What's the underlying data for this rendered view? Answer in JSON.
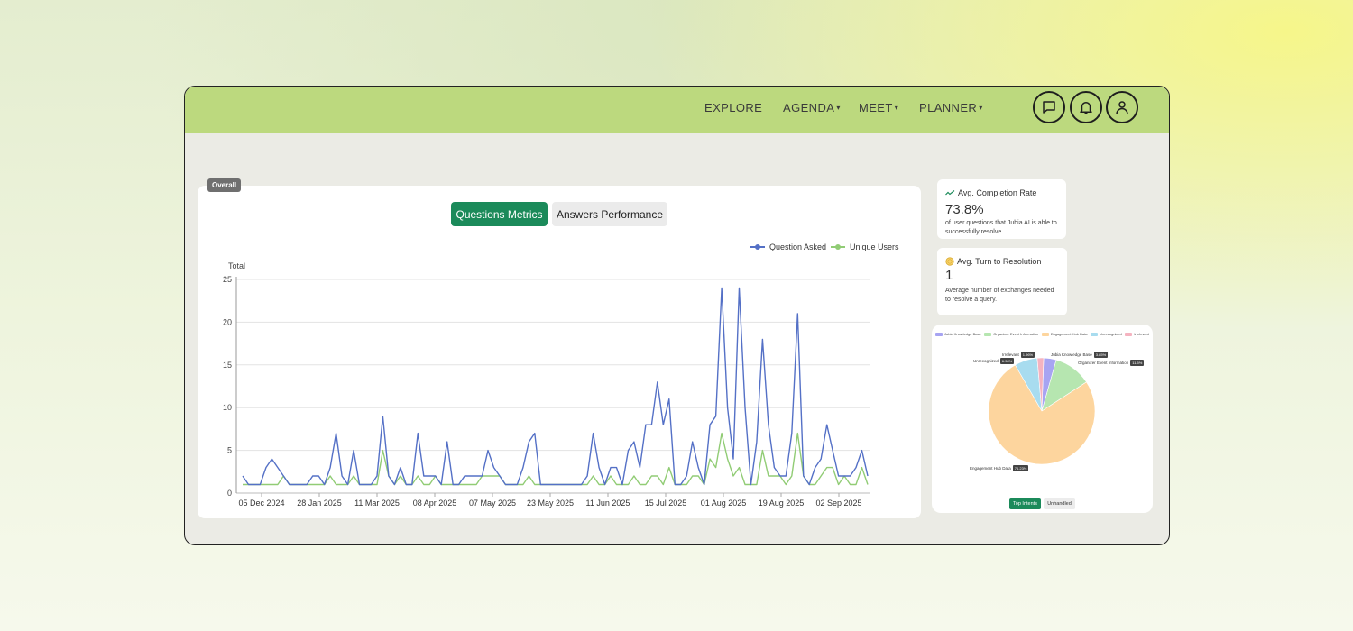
{
  "nav": {
    "explore": "EXPLORE",
    "agenda": "AGENDA",
    "meet": "MEET",
    "planner": "PLANNER",
    "caret": "▾"
  },
  "icons": {
    "chat": "chat-icon",
    "notifications": "bell-icon",
    "profile": "user-icon"
  },
  "colors": {
    "navbar": "#bcd97e",
    "accent_green": "#1b8a5a",
    "question_line": "#5470c6",
    "unique_line": "#91cc75"
  },
  "main": {
    "badge": "Overall",
    "tabs": [
      {
        "label": "Questions Metrics",
        "active": true
      },
      {
        "label": "Answers Performance",
        "active": false
      }
    ]
  },
  "chart_data": {
    "type": "line",
    "ylabel": "Total",
    "ylim": [
      0,
      25
    ],
    "yticks": [
      0,
      5,
      10,
      15,
      20,
      25
    ],
    "x_tick_labels": [
      "05 Dec 2024",
      "28 Jan 2025",
      "11 Mar 2025",
      "08 Apr 2025",
      "07 May 2025",
      "23 May 2025",
      "11 Jun 2025",
      "15 Jul 2025",
      "01 Aug 2025",
      "19 Aug 2025",
      "02 Sep 2025"
    ],
    "legend_position": "top-right",
    "grid": true,
    "series": [
      {
        "name": "Question Asked",
        "color": "#5470c6",
        "values": [
          2,
          1,
          1,
          1,
          3,
          4,
          3,
          2,
          1,
          1,
          1,
          1,
          2,
          2,
          1,
          3,
          7,
          2,
          1,
          5,
          1,
          1,
          1,
          2,
          9,
          2,
          1,
          3,
          1,
          1,
          7,
          2,
          2,
          2,
          1,
          6,
          1,
          1,
          2,
          2,
          2,
          2,
          5,
          3,
          2,
          1,
          1,
          1,
          3,
          6,
          7,
          1,
          1,
          1,
          1,
          1,
          1,
          1,
          1,
          2,
          7,
          3,
          1,
          3,
          3,
          1,
          5,
          6,
          3,
          8,
          8,
          13,
          8,
          11,
          1,
          1,
          2,
          6,
          3,
          1,
          8,
          9,
          24,
          10,
          4,
          24,
          10,
          1,
          6,
          18,
          8,
          3,
          2,
          2,
          7,
          21,
          2,
          1,
          3,
          4,
          8,
          5,
          2,
          2,
          2,
          3,
          5,
          2
        ]
      },
      {
        "name": "Unique Users",
        "color": "#91cc75",
        "values": [
          1,
          1,
          1,
          1,
          1,
          1,
          1,
          2,
          1,
          1,
          1,
          1,
          1,
          1,
          1,
          2,
          1,
          1,
          1,
          2,
          1,
          1,
          1,
          1,
          5,
          2,
          1,
          2,
          1,
          1,
          2,
          1,
          1,
          2,
          1,
          1,
          1,
          1,
          1,
          1,
          1,
          2,
          2,
          2,
          2,
          1,
          1,
          1,
          1,
          2,
          1,
          1,
          1,
          1,
          1,
          1,
          1,
          1,
          1,
          1,
          2,
          1,
          1,
          2,
          1,
          1,
          1,
          2,
          1,
          1,
          2,
          2,
          1,
          3,
          1,
          1,
          1,
          2,
          2,
          1,
          4,
          3,
          7,
          4,
          2,
          3,
          1,
          1,
          1,
          5,
          2,
          2,
          2,
          1,
          2,
          7,
          2,
          1,
          1,
          2,
          3,
          3,
          1,
          2,
          1,
          1,
          3,
          1
        ]
      }
    ]
  },
  "kpis": [
    {
      "icon": "trend-check-icon",
      "title": "Avg. Completion Rate",
      "value": "73.8%",
      "description": "of user questions that Jubia AI is able to successfully resolve."
    },
    {
      "icon": "coin-icon",
      "title": "Avg. Turn to Resolution",
      "value": "1",
      "description": "Average number of exchanges needed to resolve a query."
    }
  ],
  "pie": {
    "legend": [
      {
        "label": "Jubia Knowledge Base",
        "color": "#a7a4f2"
      },
      {
        "label": "Organizer Event Information",
        "color": "#b6e6b0"
      },
      {
        "label": "Engagement Hub Data",
        "color": "#fdd59e"
      },
      {
        "label": "Unrecognized",
        "color": "#a8dcef"
      },
      {
        "label": "Irrelevant",
        "color": "#f5b3c0"
      }
    ],
    "slices": [
      {
        "label": "Jubia Knowledge Base",
        "pct": "3.85%",
        "value": 3.85,
        "color": "#a7a4f2"
      },
      {
        "label": "Organizer Event Information",
        "pct": "11.5%",
        "value": 11.5,
        "color": "#b6e6b0"
      },
      {
        "label": "Engagement Hub Data",
        "pct": "76.23%",
        "value": 76.23,
        "color": "#fdd59e"
      },
      {
        "label": "Unrecognized",
        "pct": "6.98%",
        "value": 6.98,
        "color": "#a8dcef"
      },
      {
        "label": "Irrelevant",
        "pct": "1.96%",
        "value": 1.96,
        "color": "#f5b3c0"
      }
    ],
    "tabs": [
      {
        "label": "Top Intents",
        "active": true
      },
      {
        "label": "Unhandled",
        "active": false
      }
    ]
  }
}
